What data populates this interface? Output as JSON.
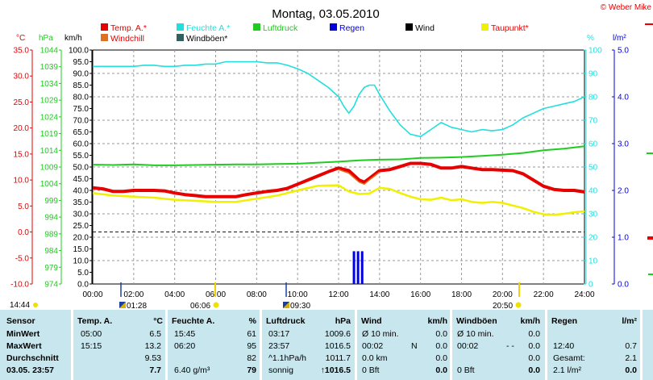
{
  "header": {
    "title": "Montag, 03.05.2010",
    "copyright": "© Weber Mike"
  },
  "legend": [
    {
      "label": "Temp. A.*",
      "color": "#e60000",
      "text_color": "#e60000"
    },
    {
      "label": "Feuchte A.*",
      "color": "#20dfdf",
      "text_color": "#20dfdf"
    },
    {
      "label": "Luftdruck",
      "color": "#20cc20",
      "text_color": "#20cc20"
    },
    {
      "label": "Regen",
      "color": "#0000e0",
      "text_color": "#0000e0"
    },
    {
      "label": "Wind",
      "color": "#000000",
      "text_color": "#000000"
    },
    {
      "label": "Taupunkt*",
      "color": "#f0f000",
      "text_color": "#e60000"
    },
    {
      "label": "Windchill",
      "color": "#e07020",
      "text_color": "#e60000"
    },
    {
      "label": "Windböen*",
      "color": "#306060",
      "text_color": "#000000"
    }
  ],
  "axes": {
    "temp": {
      "unit": "°C",
      "ticks": [
        "35.0",
        "30.0",
        "25.0",
        "20.0",
        "15.0",
        "10.0",
        "5.0",
        "0.0",
        "-5.0",
        "-10.0"
      ],
      "color": "#e60000"
    },
    "pressure": {
      "unit": "hPa",
      "ticks": [
        "1044",
        "1039",
        "1034",
        "1029",
        "1024",
        "1019",
        "1014",
        "1009",
        "1004",
        "999",
        "994",
        "989",
        "984",
        "979",
        "974"
      ],
      "color": "#20cc20"
    },
    "wind": {
      "unit": "km/h",
      "ticks": [
        "100.0",
        "95.0",
        "90.0",
        "85.0",
        "80.0",
        "75.0",
        "70.0",
        "65.0",
        "60.0",
        "55.0",
        "50.0",
        "45.0",
        "40.0",
        "35.0",
        "30.0",
        "25.0",
        "20.0",
        "15.0",
        "10.0",
        "5.0",
        "0.0"
      ],
      "color": "#000000"
    },
    "humidity": {
      "unit": "%",
      "ticks": [
        "100",
        "90",
        "80",
        "70",
        "60",
        "50",
        "40",
        "30",
        "20",
        "10",
        "0"
      ],
      "color": "#20dfdf"
    },
    "rain": {
      "unit": "l/m²",
      "ticks": [
        "5.0",
        "4.0",
        "3.0",
        "2.0",
        "1.0",
        "0.0"
      ],
      "color": "#0000e0"
    },
    "time": [
      "00:00",
      "02:00",
      "04:00",
      "06:00",
      "08:00",
      "10:00",
      "12:00",
      "14:00",
      "16:00",
      "18:00",
      "20:00",
      "22:00",
      "24:00"
    ]
  },
  "sun": {
    "rise": "06:06",
    "set": "20:50",
    "daylength": "14:44"
  },
  "moon": {
    "set": "01:28",
    "rise": "09:30"
  },
  "chart_data": {
    "type": "line",
    "x_unit": "hours",
    "xlim": [
      0,
      24
    ],
    "series": [
      {
        "name": "Feuchte A.*",
        "axis": "humidity",
        "color": "#20dfdf",
        "x": [
          0,
          0.5,
          1,
          1.5,
          2,
          2.5,
          3,
          3.5,
          4,
          4.5,
          5,
          5.5,
          6,
          6.5,
          7,
          7.5,
          8,
          8.5,
          9,
          9.5,
          10,
          10.5,
          11,
          11.5,
          12,
          12.25,
          12.5,
          12.75,
          13,
          13.25,
          13.5,
          13.75,
          14,
          14.5,
          15,
          15.5,
          16,
          16.5,
          17,
          17.5,
          18,
          18.5,
          19,
          19.5,
          20,
          20.5,
          21,
          21.5,
          22,
          22.5,
          23,
          23.5,
          24
        ],
        "y": [
          93,
          93,
          93,
          93,
          93,
          93.5,
          93.5,
          93,
          93,
          93.5,
          93.5,
          94,
          94,
          95,
          95,
          95,
          95,
          94.5,
          94.5,
          93.5,
          92,
          90,
          87,
          84,
          80,
          76,
          73,
          76,
          81,
          84,
          85,
          85,
          81,
          74,
          68,
          64,
          63,
          66,
          69,
          67,
          66,
          65,
          66,
          65.5,
          66,
          68,
          71,
          73,
          75,
          76,
          77,
          78,
          80
        ]
      },
      {
        "name": "Luftdruck",
        "axis": "pressure",
        "color": "#20cc20",
        "x": [
          0,
          1,
          2,
          3,
          4,
          5,
          6,
          7,
          8,
          9,
          10,
          11,
          12,
          13,
          14,
          15,
          16,
          17,
          18,
          19,
          20,
          21,
          22,
          23,
          24
        ],
        "y": [
          1009.7,
          1009.6,
          1009.8,
          1009.5,
          1009.5,
          1009.6,
          1009.7,
          1009.8,
          1009.8,
          1009.9,
          1010.0,
          1010.3,
          1010.6,
          1011.0,
          1011.2,
          1011.3,
          1011.7,
          1011.8,
          1012.0,
          1012.3,
          1012.7,
          1013.2,
          1014.0,
          1014.5,
          1015.2
        ]
      },
      {
        "name": "Temp. A.*",
        "axis": "temp",
        "color": "#e60000",
        "x": [
          0,
          0.5,
          1,
          1.5,
          2,
          2.5,
          3,
          3.5,
          4,
          4.5,
          5,
          5.5,
          6,
          6.5,
          7,
          7.5,
          8,
          8.5,
          9,
          9.5,
          10,
          10.5,
          11,
          11.5,
          12,
          12.5,
          13,
          13.25,
          13.5,
          14,
          14.5,
          15,
          15.5,
          16,
          16.5,
          17,
          17.5,
          18,
          18.5,
          19,
          19.5,
          20,
          20.5,
          21,
          21.5,
          22,
          22.5,
          23,
          23.5,
          24
        ],
        "y": [
          8.5,
          8.3,
          7.8,
          7.8,
          8.0,
          8.0,
          8.0,
          7.9,
          7.5,
          7.2,
          7.0,
          6.8,
          6.8,
          6.8,
          6.8,
          7.2,
          7.5,
          7.8,
          8.0,
          8.4,
          9.2,
          10.0,
          10.8,
          11.6,
          12.3,
          11.8,
          10.0,
          9.6,
          10.3,
          11.8,
          12.0,
          12.6,
          13.2,
          13.2,
          13.0,
          12.3,
          12.3,
          12.6,
          12.3,
          12.0,
          12.0,
          11.9,
          11.8,
          11.2,
          10.0,
          8.8,
          8.2,
          8.0,
          8.0,
          7.7
        ]
      },
      {
        "name": "Taupunkt*",
        "axis": "temp",
        "color": "#f0f000",
        "x": [
          0,
          1,
          2,
          3,
          4,
          5,
          6,
          7,
          8,
          9,
          10,
          11,
          12,
          12.5,
          13,
          13.5,
          14,
          14.5,
          15,
          15.5,
          16,
          16.5,
          17,
          17.5,
          18,
          18.5,
          19,
          19.5,
          20,
          20.5,
          21,
          21.5,
          22,
          22.5,
          23,
          23.5,
          24
        ],
        "y": [
          7.5,
          7.0,
          6.8,
          6.6,
          6.2,
          6.0,
          5.8,
          5.8,
          6.4,
          7.0,
          8.0,
          8.9,
          9.0,
          7.8,
          7.3,
          7.4,
          8.5,
          8.3,
          7.5,
          6.8,
          6.3,
          6.2,
          6.6,
          6.1,
          6.3,
          5.8,
          5.6,
          5.8,
          5.6,
          5.1,
          4.6,
          3.9,
          3.4,
          3.3,
          3.5,
          3.8,
          4.0
        ]
      },
      {
        "name": "Windchill",
        "axis": "temp",
        "color": "#e07020",
        "x": [
          12,
          12.5,
          13,
          13.25,
          13.5,
          14
        ],
        "y": [
          12.0,
          11.3,
          9.6,
          9.2,
          10.0,
          11.5
        ]
      }
    ],
    "rain_bars": {
      "axis": "rain",
      "color": "#0000e0",
      "x": [
        12.75,
        12.95,
        13.15
      ],
      "y": [
        0.7,
        0.7,
        0.7
      ]
    },
    "reference_lines": [
      {
        "axis": "temp",
        "value": 0.0,
        "style": "dashed",
        "color": "#0000e0"
      }
    ],
    "grid": true
  },
  "table": {
    "headers": {
      "sensor": "Sensor",
      "temp": {
        "label": "Temp. A.",
        "unit": "°C"
      },
      "hum": {
        "label": "Feuchte A.",
        "unit": "%"
      },
      "press": {
        "label": "Luftdruck",
        "unit": "hPa"
      },
      "wind": {
        "label": "Wind",
        "unit": "km/h"
      },
      "gust": {
        "label": "Windböen",
        "unit": "km/h"
      },
      "rain": {
        "label": "Regen",
        "unit": "l/m²"
      }
    },
    "rows": [
      {
        "label": "MinWert",
        "temp_time": "05:00",
        "temp_val": "6.5",
        "hum_time": "15:45",
        "hum_val": "61",
        "press_time": "03:17",
        "press_val": "1009.6",
        "wind_time": "Ø 10 min.",
        "wind_val": "0.0",
        "gust_time": "Ø 10 min.",
        "gust_val": "0.0",
        "rain_time": "",
        "rain_val": ""
      },
      {
        "label": "MaxWert",
        "temp_time": "15:15",
        "temp_val": "13.2",
        "hum_time": "06:20",
        "hum_val": "95",
        "press_time": "23:57",
        "press_val": "1016.5",
        "wind_time": "00:02",
        "wind_mid": "N",
        "wind_val": "0.0",
        "gust_time": "00:02",
        "gust_mid": "- -",
        "gust_val": "0.0",
        "rain_time": "12:40",
        "rain_val": "0.7"
      },
      {
        "label": "Durchschnitt",
        "temp_time": "",
        "temp_val": "9.53",
        "hum_time": "",
        "hum_val": "82",
        "press_time": "^1.1hPa/h",
        "press_val": "1011.7",
        "wind_time": "0.0 km",
        "wind_val": "0.0",
        "gust_time": "",
        "gust_val": "0.0",
        "rain_time": "Gesamt:",
        "rain_val": "2.1"
      },
      {
        "label": "03.05. 23:57",
        "temp_time": "",
        "temp_val": "7.7",
        "hum_time": "6.40 g/m³",
        "hum_val": "79",
        "press_time": "sonnig",
        "press_val": "↑1016.5",
        "wind_time": "0 Bft",
        "wind_val": "0.0",
        "gust_time": "0 Bft",
        "gust_val": "0.0",
        "rain_time": "2.1 l/m²",
        "rain_val": "0.0"
      }
    ]
  }
}
